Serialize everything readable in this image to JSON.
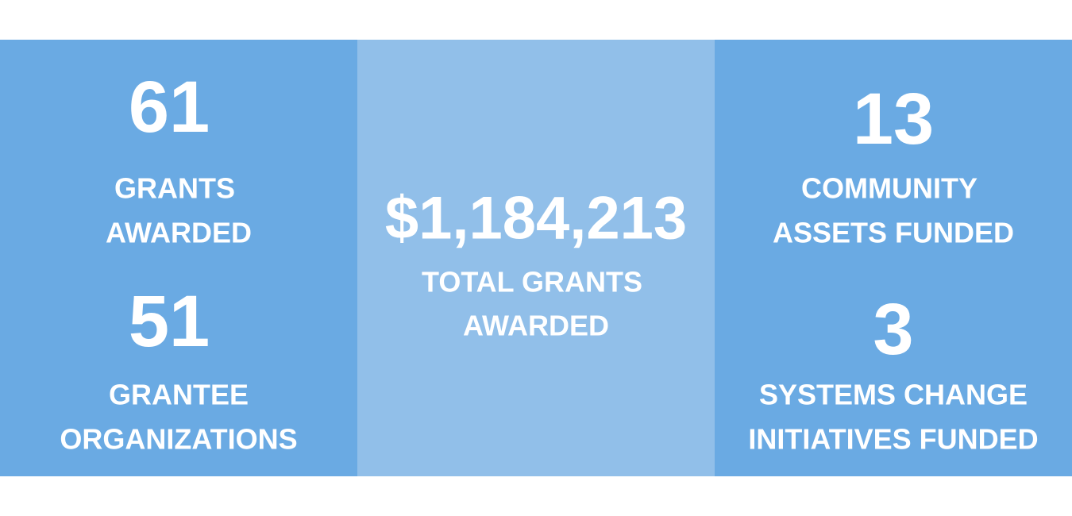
{
  "stats": {
    "left": [
      {
        "number": "61",
        "label": [
          "GRANTS",
          "AWARDED"
        ]
      },
      {
        "number": "51",
        "label": [
          "GRANTEE",
          "ORGANIZATIONS"
        ]
      }
    ],
    "center": {
      "number": "$1,184,213",
      "label": [
        "TOTAL GRANTS",
        "AWARDED"
      ]
    },
    "right": [
      {
        "number": "13",
        "label": [
          "COMMUNITY",
          "ASSETS FUNDED"
        ]
      },
      {
        "number": "3",
        "label": [
          "SYSTEMS CHANGE",
          "INITIATIVES FUNDED"
        ]
      }
    ]
  }
}
